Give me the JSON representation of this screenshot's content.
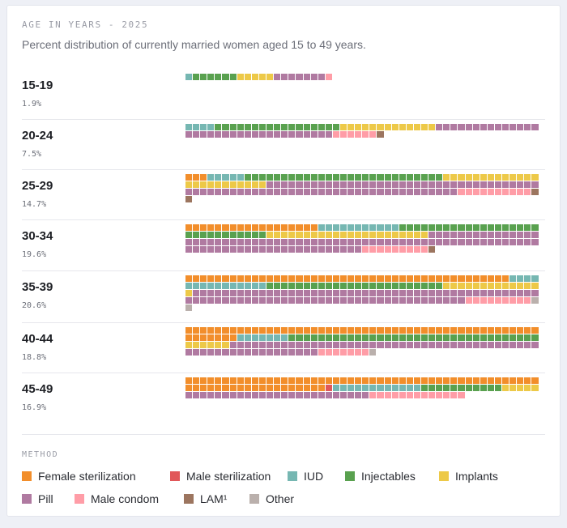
{
  "header": {
    "kicker": "AGE IN YEARS - 2025",
    "subtitle": "Percent distribution of currently married women aged 15 to 49 years."
  },
  "legend": {
    "title": "METHOD",
    "items": [
      {
        "key": "fs",
        "label": "Female sterilization",
        "color": "#f28e2b"
      },
      {
        "key": "ms",
        "label": "Male sterilization",
        "color": "#e15759"
      },
      {
        "key": "iud",
        "label": "IUD",
        "color": "#76b7b2"
      },
      {
        "key": "inj",
        "label": "Injectables",
        "color": "#59a14f"
      },
      {
        "key": "imp",
        "label": "Implants",
        "color": "#edc948"
      },
      {
        "key": "pill",
        "label": "Pill",
        "color": "#b07aa1"
      },
      {
        "key": "mc",
        "label": "Male condom",
        "color": "#ff9da7"
      },
      {
        "key": "lam",
        "label": "LAM¹",
        "color": "#9c755f"
      },
      {
        "key": "other",
        "label": "Other",
        "color": "#bab0ac"
      }
    ]
  },
  "chart_data": {
    "type": "waffle",
    "title": "AGE IN YEARS - 2025",
    "subtitle": "Percent distribution of currently married women aged 15 to 49 years.",
    "method_order": [
      "fs",
      "ms",
      "iud",
      "inj",
      "imp",
      "pill",
      "mc",
      "lam",
      "other"
    ],
    "rows": [
      {
        "age": "15-19",
        "share_label": "1.9%",
        "counts": {
          "fs": 0,
          "ms": 0,
          "iud": 1,
          "inj": 6,
          "imp": 5,
          "pill": 7,
          "mc": 1,
          "lam": 0,
          "other": 0
        }
      },
      {
        "age": "20-24",
        "share_label": "7.5%",
        "counts": {
          "fs": 0,
          "ms": 0,
          "iud": 4,
          "inj": 17,
          "imp": 13,
          "pill": 34,
          "mc": 6,
          "lam": 1,
          "other": 0
        }
      },
      {
        "age": "25-29",
        "share_label": "14.7%",
        "counts": {
          "fs": 3,
          "ms": 0,
          "iud": 5,
          "inj": 27,
          "imp": 24,
          "pill": 74,
          "mc": 10,
          "lam": 2,
          "other": 0
        }
      },
      {
        "age": "30-34",
        "share_label": "19.6%",
        "counts": {
          "fs": 18,
          "ms": 0,
          "iud": 11,
          "inj": 30,
          "imp": 22,
          "pill": 87,
          "mc": 9,
          "lam": 1,
          "other": 0
        }
      },
      {
        "age": "35-39",
        "share_label": "20.6%",
        "counts": {
          "fs": 44,
          "ms": 0,
          "iud": 15,
          "inj": 24,
          "imp": 14,
          "pill": 85,
          "mc": 9,
          "lam": 0,
          "other": 2
        }
      },
      {
        "age": "40-44",
        "share_label": "18.8%",
        "counts": {
          "fs": 55,
          "ms": 0,
          "iud": 7,
          "inj": 34,
          "imp": 6,
          "pill": 60,
          "mc": 7,
          "lam": 0,
          "other": 1
        }
      },
      {
        "age": "45-49",
        "share_label": "16.9%",
        "counts": {
          "fs": 67,
          "ms": 1,
          "iud": 12,
          "inj": 11,
          "imp": 5,
          "pill": 25,
          "mc": 13,
          "lam": 0,
          "other": 0
        }
      }
    ]
  }
}
